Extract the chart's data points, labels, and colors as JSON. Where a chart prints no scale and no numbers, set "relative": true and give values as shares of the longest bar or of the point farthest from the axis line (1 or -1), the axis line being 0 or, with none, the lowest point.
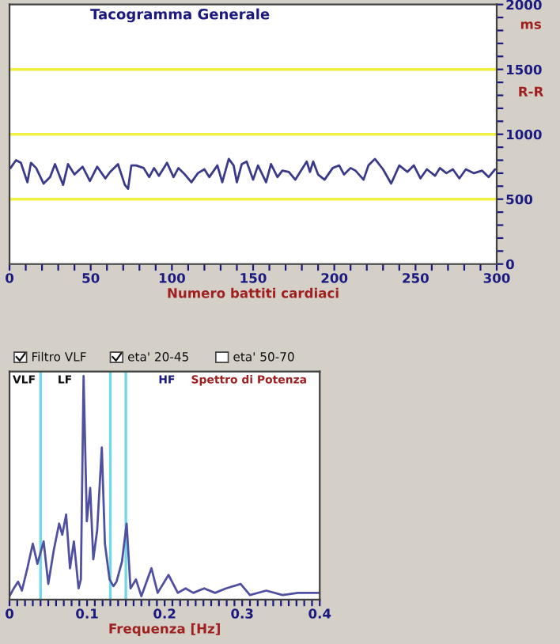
{
  "chart_data": [
    {
      "type": "line",
      "title": "Tacogramma Generale",
      "xlabel": "Numero battiti cardiaci",
      "ylabel": "R-R",
      "annotations": [
        "ms"
      ],
      "x": [
        0.6,
        4,
        7,
        11,
        13.2,
        16.4,
        21,
        25,
        28,
        33,
        36,
        40,
        45,
        49.5,
        54,
        59,
        62,
        66.8,
        71,
        73,
        75,
        78,
        82.6,
        86,
        89,
        92,
        97,
        101,
        104,
        108,
        112,
        116,
        120,
        123,
        128,
        131,
        135,
        138,
        140,
        143,
        146,
        150,
        153,
        158,
        161,
        165,
        168,
        172,
        176,
        179,
        183,
        185,
        187,
        190,
        194,
        199,
        203,
        206,
        210,
        213,
        218,
        221,
        225,
        230,
        235,
        240,
        245,
        249,
        253,
        257,
        262,
        265,
        269,
        273,
        277,
        281,
        286,
        291,
        295,
        299
      ],
      "series": [
        {
          "color": "#3a3a8a",
          "values": [
            740,
            800,
            780,
            630,
            780,
            740,
            620,
            670,
            770,
            610,
            770,
            690,
            750,
            640,
            750,
            660,
            710,
            770,
            610,
            580,
            760,
            760,
            740,
            670,
            740,
            680,
            780,
            670,
            740,
            690,
            630,
            700,
            730,
            670,
            760,
            630,
            810,
            760,
            630,
            770,
            790,
            650,
            760,
            630,
            770,
            670,
            720,
            710,
            650,
            710,
            790,
            710,
            790,
            690,
            650,
            740,
            760,
            690,
            740,
            720,
            650,
            760,
            810,
            730,
            620,
            760,
            710,
            760,
            660,
            730,
            680,
            740,
            700,
            730,
            660,
            730,
            700,
            720,
            670,
            730
          ]
        }
      ],
      "xlim": [
        0,
        300
      ],
      "ylim": [
        0,
        2000
      ],
      "xticks": [
        0,
        {
          "value": 10,
          "label": null
        },
        {
          "value": 20,
          "label": null
        },
        {
          "value": 30,
          "label": null
        },
        {
          "value": 40,
          "label": null
        },
        50,
        {
          "value": 60,
          "label": null
        },
        {
          "value": 70,
          "label": null
        },
        {
          "value": 80,
          "label": null
        },
        {
          "value": 90,
          "label": null
        },
        100,
        {
          "value": 110,
          "label": null
        },
        {
          "value": 120,
          "label": null
        },
        {
          "value": 130,
          "label": null
        },
        {
          "value": 140,
          "label": null
        },
        150,
        {
          "value": 160,
          "label": null
        },
        {
          "value": 170,
          "label": null
        },
        {
          "value": 180,
          "label": null
        },
        {
          "value": 190,
          "label": null
        },
        200,
        {
          "value": 210,
          "label": null
        },
        {
          "value": 220,
          "label": null
        },
        {
          "value": 230,
          "label": null
        },
        {
          "value": 240,
          "label": null
        },
        250,
        {
          "value": 260,
          "label": null
        },
        {
          "value": 270,
          "label": null
        },
        {
          "value": 280,
          "label": null
        },
        {
          "value": 290,
          "label": null
        },
        300
      ],
      "yticks": [
        0,
        {
          "value": 100,
          "label": null
        },
        {
          "value": 200,
          "label": null
        },
        {
          "value": 300,
          "label": null
        },
        {
          "value": 400,
          "label": null
        },
        500,
        {
          "value": 600,
          "label": null
        },
        {
          "value": 700,
          "label": null
        },
        {
          "value": 800,
          "label": null
        },
        {
          "value": 900,
          "label": null
        },
        1000,
        {
          "value": 1100,
          "label": null
        },
        {
          "value": 1200,
          "label": null
        },
        {
          "value": 1300,
          "label": null
        },
        {
          "value": 1400,
          "label": null
        },
        1500,
        {
          "value": 1600,
          "label": null
        },
        {
          "value": 1700,
          "label": null
        },
        {
          "value": 1800,
          "label": null
        },
        {
          "value": 1900,
          "label": null
        },
        2000
      ],
      "ref_lines": [
        {
          "axis": "y",
          "value": 500,
          "color": "#f0f040"
        },
        {
          "axis": "y",
          "value": 1000,
          "color": "#f0f040"
        },
        {
          "axis": "y",
          "value": 1500,
          "color": "#f0f040"
        }
      ],
      "grid": false,
      "legend": false
    },
    {
      "type": "line",
      "relative": true,
      "xlabel": "Frequenza [Hz]",
      "annotations": [
        "Filtro VLF",
        "eta' 20-45",
        "eta' 50-70",
        "VLF",
        "LF",
        "HF",
        "Spettro di Potenza"
      ],
      "x": [
        0,
        0.0055,
        0.011,
        0.016,
        0.023,
        0.03,
        0.036,
        0.044,
        0.05,
        0.057,
        0.064,
        0.068,
        0.073,
        0.078,
        0.083,
        0.089,
        0.092,
        0.0955,
        0.0997,
        0.104,
        0.108,
        0.113,
        0.119,
        0.123,
        0.129,
        0.134,
        0.138,
        0.145,
        0.151,
        0.156,
        0.163,
        0.17,
        0.183,
        0.191,
        0.205,
        0.217,
        0.227,
        0.237,
        0.251,
        0.265,
        0.279,
        0.298,
        0.31,
        0.331,
        0.352,
        0.372,
        0.4
      ],
      "series": [
        {
          "color": "#5050a0",
          "values": [
            0.015,
            0.05,
            0.08,
            0.04,
            0.14,
            0.25,
            0.16,
            0.26,
            0.07,
            0.22,
            0.34,
            0.29,
            0.38,
            0.14,
            0.26,
            0.05,
            0.09,
            1.0,
            0.35,
            0.5,
            0.18,
            0.31,
            0.68,
            0.25,
            0.09,
            0.06,
            0.08,
            0.17,
            0.34,
            0.05,
            0.09,
            0.015,
            0.14,
            0.03,
            0.11,
            0.03,
            0.05,
            0.03,
            0.05,
            0.03,
            0.05,
            0.07,
            0.02,
            0.04,
            0.02,
            0.03,
            0.03
          ]
        }
      ],
      "xlim": [
        0,
        0.4
      ],
      "xticks": [
        0,
        {
          "value": 0.01,
          "label": null
        },
        {
          "value": 0.02,
          "label": null
        },
        {
          "value": 0.03,
          "label": null
        },
        {
          "value": 0.04,
          "label": null
        },
        {
          "value": 0.05,
          "label": null
        },
        {
          "value": 0.06,
          "label": null
        },
        {
          "value": 0.07,
          "label": null
        },
        {
          "value": 0.08,
          "label": null
        },
        {
          "value": 0.09,
          "label": null
        },
        0.1,
        {
          "value": 0.11,
          "label": null
        },
        {
          "value": 0.12,
          "label": null
        },
        {
          "value": 0.13,
          "label": null
        },
        {
          "value": 0.14,
          "label": null
        },
        {
          "value": 0.15,
          "label": null
        },
        {
          "value": 0.16,
          "label": null
        },
        {
          "value": 0.17,
          "label": null
        },
        {
          "value": 0.18,
          "label": null
        },
        {
          "value": 0.19,
          "label": null
        },
        0.2,
        {
          "value": 0.21,
          "label": null
        },
        {
          "value": 0.22,
          "label": null
        },
        {
          "value": 0.23,
          "label": null
        },
        {
          "value": 0.24,
          "label": null
        },
        {
          "value": 0.25,
          "label": null
        },
        {
          "value": 0.26,
          "label": null
        },
        {
          "value": 0.27,
          "label": null
        },
        {
          "value": 0.28,
          "label": null
        },
        {
          "value": 0.29,
          "label": null
        },
        0.3,
        {
          "value": 0.31,
          "label": null
        },
        {
          "value": 0.32,
          "label": null
        },
        {
          "value": 0.33,
          "label": null
        },
        {
          "value": 0.34,
          "label": null
        },
        {
          "value": 0.35,
          "label": null
        },
        {
          "value": 0.36,
          "label": null
        },
        {
          "value": 0.37,
          "label": null
        },
        {
          "value": 0.38,
          "label": null
        },
        {
          "value": 0.39,
          "label": null
        },
        0.4
      ],
      "ref_lines": [
        {
          "axis": "x",
          "value": 0.04,
          "color": "#70d8e8"
        },
        {
          "axis": "x",
          "value": 0.13,
          "color": "#70d8e8"
        },
        {
          "axis": "x",
          "value": 0.15,
          "color": "#70d8e8"
        }
      ],
      "grid": false,
      "legend": false
    }
  ]
}
